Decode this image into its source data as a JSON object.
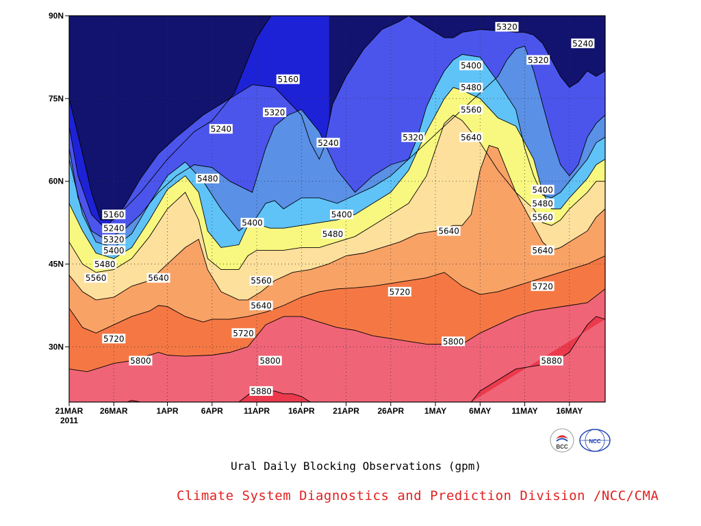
{
  "chart_data": {
    "type": "contour",
    "title": "Ural Daily Blocking Observations (gpm)",
    "x_tick_labels": [
      "21MAR",
      "26MAR",
      "1APR",
      "6APR",
      "11APR",
      "16APR",
      "21APR",
      "26APR",
      "1MAY",
      "6MAY",
      "11MAY",
      "16MAY"
    ],
    "x_year_label": "2011",
    "x_range_days": [
      0,
      60
    ],
    "y_tick_labels": [
      "30N",
      "45N",
      "60N",
      "75N",
      "90N"
    ],
    "y_tick_values": [
      30,
      45,
      60,
      75,
      90
    ],
    "ylim": [
      20,
      90
    ],
    "levels": [
      5160,
      5240,
      5320,
      5400,
      5480,
      5560,
      5640,
      5720,
      5800,
      5880
    ],
    "band_colors": [
      "#12136e",
      "#1e22d6",
      "#4b55ec",
      "#5a90e6",
      "#5fc3f8",
      "#f8f880",
      "#fde09c",
      "#f9a266",
      "#f57844",
      "#f06478",
      "#ea3a4c"
    ],
    "contours": [
      {
        "level": 5160,
        "x": [
          0,
          1.5,
          2.5,
          3.5,
          5,
          8,
          11,
          14,
          16,
          18.5,
          21,
          23,
          24.5
        ],
        "y": [
          75,
          65,
          58,
          53,
          53,
          58,
          64,
          69,
          71,
          76,
          86,
          91,
          93
        ]
      },
      {
        "level": 5240,
        "x": [
          0,
          1,
          2.5,
          4,
          6,
          8,
          10,
          12,
          15,
          18,
          20.5,
          23,
          26,
          27,
          28,
          28.5,
          29,
          29.5,
          31,
          33,
          35,
          37,
          38,
          39,
          40,
          41,
          42,
          43,
          44,
          46,
          48,
          49,
          50,
          51,
          52,
          53,
          54,
          55,
          56,
          57,
          58,
          59,
          60
        ],
        "y": [
          70,
          61,
          54,
          51.5,
          55,
          60.5,
          65,
          68,
          72,
          75,
          77.5,
          77,
          72,
          67,
          64,
          66,
          70,
          74,
          79,
          84,
          87.5,
          89,
          90,
          89,
          88,
          87,
          86,
          86,
          87,
          87.5,
          87.3,
          87.2,
          87,
          87,
          86.5,
          85,
          82,
          79,
          77,
          78,
          80,
          79,
          80
        ]
      },
      {
        "level": 5320,
        "x": [
          0,
          1,
          2.5,
          4,
          6,
          8,
          10,
          12,
          14,
          16,
          18,
          20.5,
          22,
          23,
          24.5,
          26,
          28,
          30,
          32,
          34,
          36,
          38,
          40,
          42,
          44,
          46,
          48,
          49,
          50,
          51,
          52,
          53,
          54,
          55,
          56,
          57,
          58,
          59,
          60
        ],
        "y": [
          66,
          57,
          51,
          49.5,
          51,
          54,
          58,
          61,
          63,
          62.5,
          60,
          58,
          66,
          70,
          72,
          73,
          69,
          62,
          58,
          61,
          63,
          64,
          67,
          70,
          73,
          76,
          79,
          82,
          84,
          84.5,
          80,
          74,
          68,
          63,
          61,
          63,
          68,
          70.5,
          72
        ]
      },
      {
        "level": 5400,
        "x": [
          0,
          1.5,
          3,
          5,
          7,
          9,
          11,
          13,
          15,
          17,
          19,
          21,
          22,
          23,
          24,
          25,
          26,
          28,
          30,
          32,
          34,
          36,
          38,
          39,
          40,
          41,
          42,
          43,
          44,
          46,
          48,
          50,
          51,
          52,
          53,
          54,
          55,
          56,
          57,
          58,
          59,
          60
        ],
        "y": [
          64,
          54,
          49,
          48,
          50.5,
          56,
          61,
          63.5,
          60,
          55,
          51,
          53.5,
          56,
          56.5,
          55,
          56,
          57,
          57,
          56,
          57.5,
          59,
          61,
          64,
          68,
          73.5,
          77,
          80,
          82,
          83,
          82.5,
          78,
          73,
          66,
          61,
          57.5,
          57,
          58,
          60,
          62,
          64,
          67,
          68
        ]
      },
      {
        "level": 5480,
        "x": [
          0,
          1.5,
          3,
          5,
          7,
          9,
          11,
          13,
          14.5,
          15.5,
          17,
          19,
          20,
          21.5,
          22.5,
          24,
          26,
          28,
          30,
          32,
          34,
          36,
          38,
          40,
          42,
          43,
          44,
          46,
          48,
          50,
          52,
          53,
          54,
          55,
          56,
          58,
          59,
          60
        ],
        "y": [
          56,
          51,
          47,
          46,
          48,
          53,
          58.5,
          61,
          58,
          51,
          48,
          48.5,
          52,
          52,
          51.5,
          51.5,
          52,
          52.5,
          53,
          54,
          56,
          58,
          62,
          69,
          75,
          77,
          76.5,
          75,
          71.5,
          70,
          64,
          58,
          55,
          55,
          57,
          60.5,
          63,
          64
        ]
      },
      {
        "level": 5560,
        "x": [
          0,
          1.5,
          3,
          5,
          7,
          9,
          11,
          13,
          14.5,
          15.5,
          17,
          19,
          20,
          21,
          22.5,
          24,
          26,
          28,
          30,
          32,
          34,
          36,
          38,
          40,
          42,
          43,
          44,
          46,
          48,
          50,
          52,
          53,
          54,
          55,
          56,
          58,
          59,
          60
        ],
        "y": [
          49,
          45,
          43.5,
          44,
          46,
          50,
          55,
          58,
          53,
          46,
          44,
          44,
          46.5,
          47.5,
          47.5,
          47.5,
          48,
          48,
          49,
          50,
          52,
          54,
          56,
          61,
          70.5,
          72,
          71,
          67,
          62,
          58,
          55,
          52.5,
          52,
          53,
          55,
          58,
          60,
          60
        ]
      },
      {
        "level": 5640,
        "x": [
          0,
          1.5,
          3,
          5,
          7,
          9,
          11,
          13,
          14.5,
          15.5,
          17,
          19,
          20,
          21.5,
          23,
          25,
          27,
          29,
          31,
          33,
          35,
          37,
          39,
          41,
          43,
          44,
          45,
          46,
          47,
          48,
          50,
          52,
          53,
          54,
          55,
          56,
          58,
          59,
          60
        ],
        "y": [
          43,
          40,
          38.5,
          39,
          41,
          42,
          45,
          48,
          49.5,
          44,
          40,
          38.5,
          38.5,
          40,
          42,
          43.5,
          44,
          45,
          46.5,
          47,
          48,
          49,
          50.5,
          51,
          52,
          52,
          54,
          62,
          66.5,
          66,
          58,
          52,
          49,
          47.5,
          48,
          49,
          51,
          53.5,
          55
        ]
      },
      {
        "level": 5720,
        "x": [
          0,
          1.5,
          3,
          5,
          7,
          9,
          10,
          11,
          13,
          15,
          16,
          18,
          20,
          22,
          24,
          26,
          28,
          30,
          32,
          34,
          36,
          38,
          40,
          42,
          44,
          46,
          48,
          50,
          52,
          54,
          56,
          58,
          60
        ],
        "y": [
          37,
          33.5,
          32.5,
          34,
          35.5,
          36.5,
          37.5,
          37.3,
          35.5,
          34.5,
          35,
          35,
          35.5,
          36.3,
          37.5,
          39,
          40,
          40.5,
          40.7,
          41,
          41.5,
          42,
          42.5,
          43.5,
          41,
          39.5,
          40,
          41,
          42,
          43,
          44,
          45,
          46.5
        ]
      },
      {
        "level": 5800,
        "x": [
          0,
          2,
          3,
          5,
          7,
          9,
          10,
          11,
          13,
          16,
          18,
          20,
          22,
          24,
          26,
          28,
          30,
          32,
          34,
          36,
          38,
          40,
          42,
          44,
          46,
          48,
          50,
          52,
          54,
          56,
          58,
          60
        ],
        "y": [
          26,
          25.5,
          26,
          27,
          27.5,
          28.5,
          29,
          28.5,
          28.3,
          28.5,
          29,
          30,
          34,
          35.5,
          35.5,
          34.5,
          33.5,
          33,
          32,
          31.5,
          31,
          30.5,
          30.5,
          30.5,
          32.5,
          34,
          35.5,
          36.5,
          37,
          37.5,
          38,
          40.5
        ]
      },
      {
        "level": 5880,
        "x": [
          19,
          21,
          22,
          23,
          24,
          25,
          26,
          27
        ],
        "y": [
          20,
          22.5,
          22,
          22,
          21.5,
          21.5,
          21,
          20
        ]
      },
      {
        "level": 5880,
        "x": [
          45,
          46,
          48,
          50,
          52,
          54,
          56,
          58,
          59,
          60
        ],
        "y": [
          20,
          22,
          24,
          26,
          26.5,
          27,
          29,
          34,
          35.5,
          35
        ]
      },
      {
        "level": 5880,
        "x": [
          6.5,
          7,
          8
        ],
        "y": [
          20,
          20.3,
          20
        ]
      }
    ],
    "contour_labels": [
      {
        "text": "5160",
        "x": 5,
        "y": 54
      },
      {
        "text": "5240",
        "x": 5,
        "y": 51.5
      },
      {
        "text": "5320",
        "x": 5,
        "y": 49.5
      },
      {
        "text": "5400",
        "x": 5,
        "y": 47.5
      },
      {
        "text": "5480",
        "x": 4,
        "y": 45
      },
      {
        "text": "5560",
        "x": 3,
        "y": 42.5
      },
      {
        "text": "5640",
        "x": 10,
        "y": 42.5
      },
      {
        "text": "5720",
        "x": 5,
        "y": 31.5
      },
      {
        "text": "5800",
        "x": 8,
        "y": 27.5
      },
      {
        "text": "5480",
        "x": 15.5,
        "y": 60.5
      },
      {
        "text": "5240",
        "x": 17,
        "y": 69.5
      },
      {
        "text": "5160",
        "x": 24.5,
        "y": 78.5
      },
      {
        "text": "5320",
        "x": 23,
        "y": 72.5
      },
      {
        "text": "5240",
        "x": 29,
        "y": 67
      },
      {
        "text": "5400",
        "x": 20.5,
        "y": 52.5
      },
      {
        "text": "5560",
        "x": 21.5,
        "y": 42
      },
      {
        "text": "5640",
        "x": 21.5,
        "y": 37.5
      },
      {
        "text": "5720",
        "x": 19.5,
        "y": 32.5
      },
      {
        "text": "5800",
        "x": 22.5,
        "y": 27.5
      },
      {
        "text": "5880",
        "x": 21.5,
        "y": 22
      },
      {
        "text": "5400",
        "x": 30.5,
        "y": 54
      },
      {
        "text": "5480",
        "x": 29.5,
        "y": 50.5
      },
      {
        "text": "5320",
        "x": 38.5,
        "y": 68
      },
      {
        "text": "5720",
        "x": 37,
        "y": 40
      },
      {
        "text": "5800",
        "x": 43,
        "y": 31
      },
      {
        "text": "5640",
        "x": 42.5,
        "y": 51
      },
      {
        "text": "5320",
        "x": 49,
        "y": 88
      },
      {
        "text": "5400",
        "x": 45,
        "y": 81
      },
      {
        "text": "5480",
        "x": 45,
        "y": 77
      },
      {
        "text": "5560",
        "x": 45,
        "y": 73
      },
      {
        "text": "5640",
        "x": 45,
        "y": 68
      },
      {
        "text": "5320",
        "x": 52.5,
        "y": 82
      },
      {
        "text": "5240",
        "x": 57.5,
        "y": 85
      },
      {
        "text": "5400",
        "x": 53,
        "y": 58.5
      },
      {
        "text": "5480",
        "x": 53,
        "y": 56
      },
      {
        "text": "5560",
        "x": 53,
        "y": 53.5
      },
      {
        "text": "5640",
        "x": 53,
        "y": 47.5
      },
      {
        "text": "5720",
        "x": 53,
        "y": 41
      },
      {
        "text": "5880",
        "x": 54,
        "y": 27.5
      }
    ],
    "grid": true
  },
  "footer": {
    "credit": "Climate System Diagnostics and Prediction Division /NCC/CMA"
  },
  "logos": {
    "bcc_text": "BCC",
    "ncc_text": "NCC"
  }
}
